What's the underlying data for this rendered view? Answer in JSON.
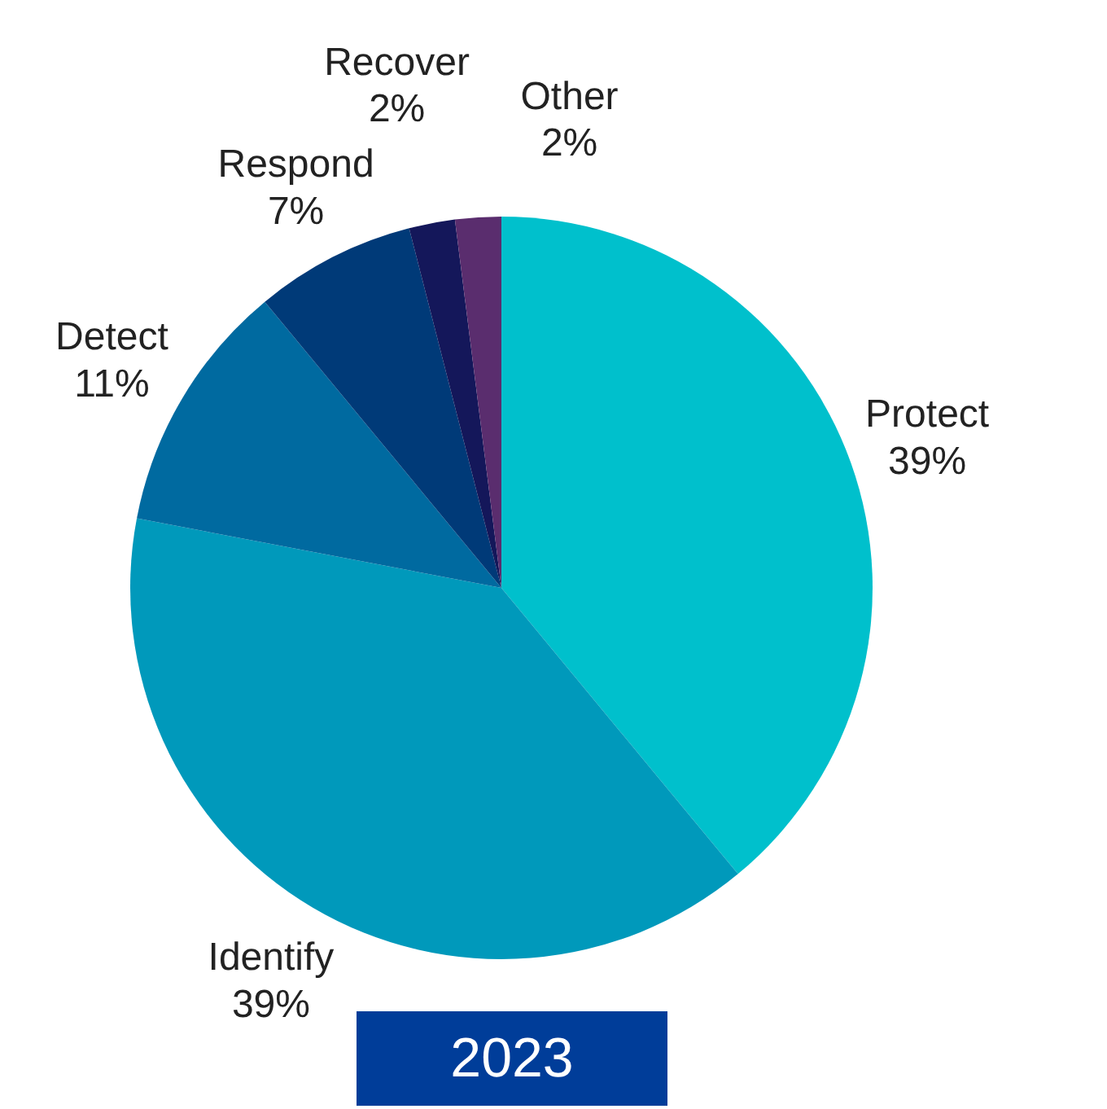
{
  "chart_data": {
    "type": "pie",
    "title": "2023",
    "categories": [
      "Protect",
      "Identify",
      "Detect",
      "Respond",
      "Recover",
      "Other"
    ],
    "values": [
      39,
      39,
      11,
      7,
      2,
      2
    ],
    "value_labels": [
      "39%",
      "39%",
      "11%",
      "7%",
      "2%",
      "2%"
    ],
    "colors": [
      "#00c0cc",
      "#0099bb",
      "#006aa0",
      "#003a78",
      "#14175a",
      "#5a2d6e"
    ],
    "legend": false
  }
}
